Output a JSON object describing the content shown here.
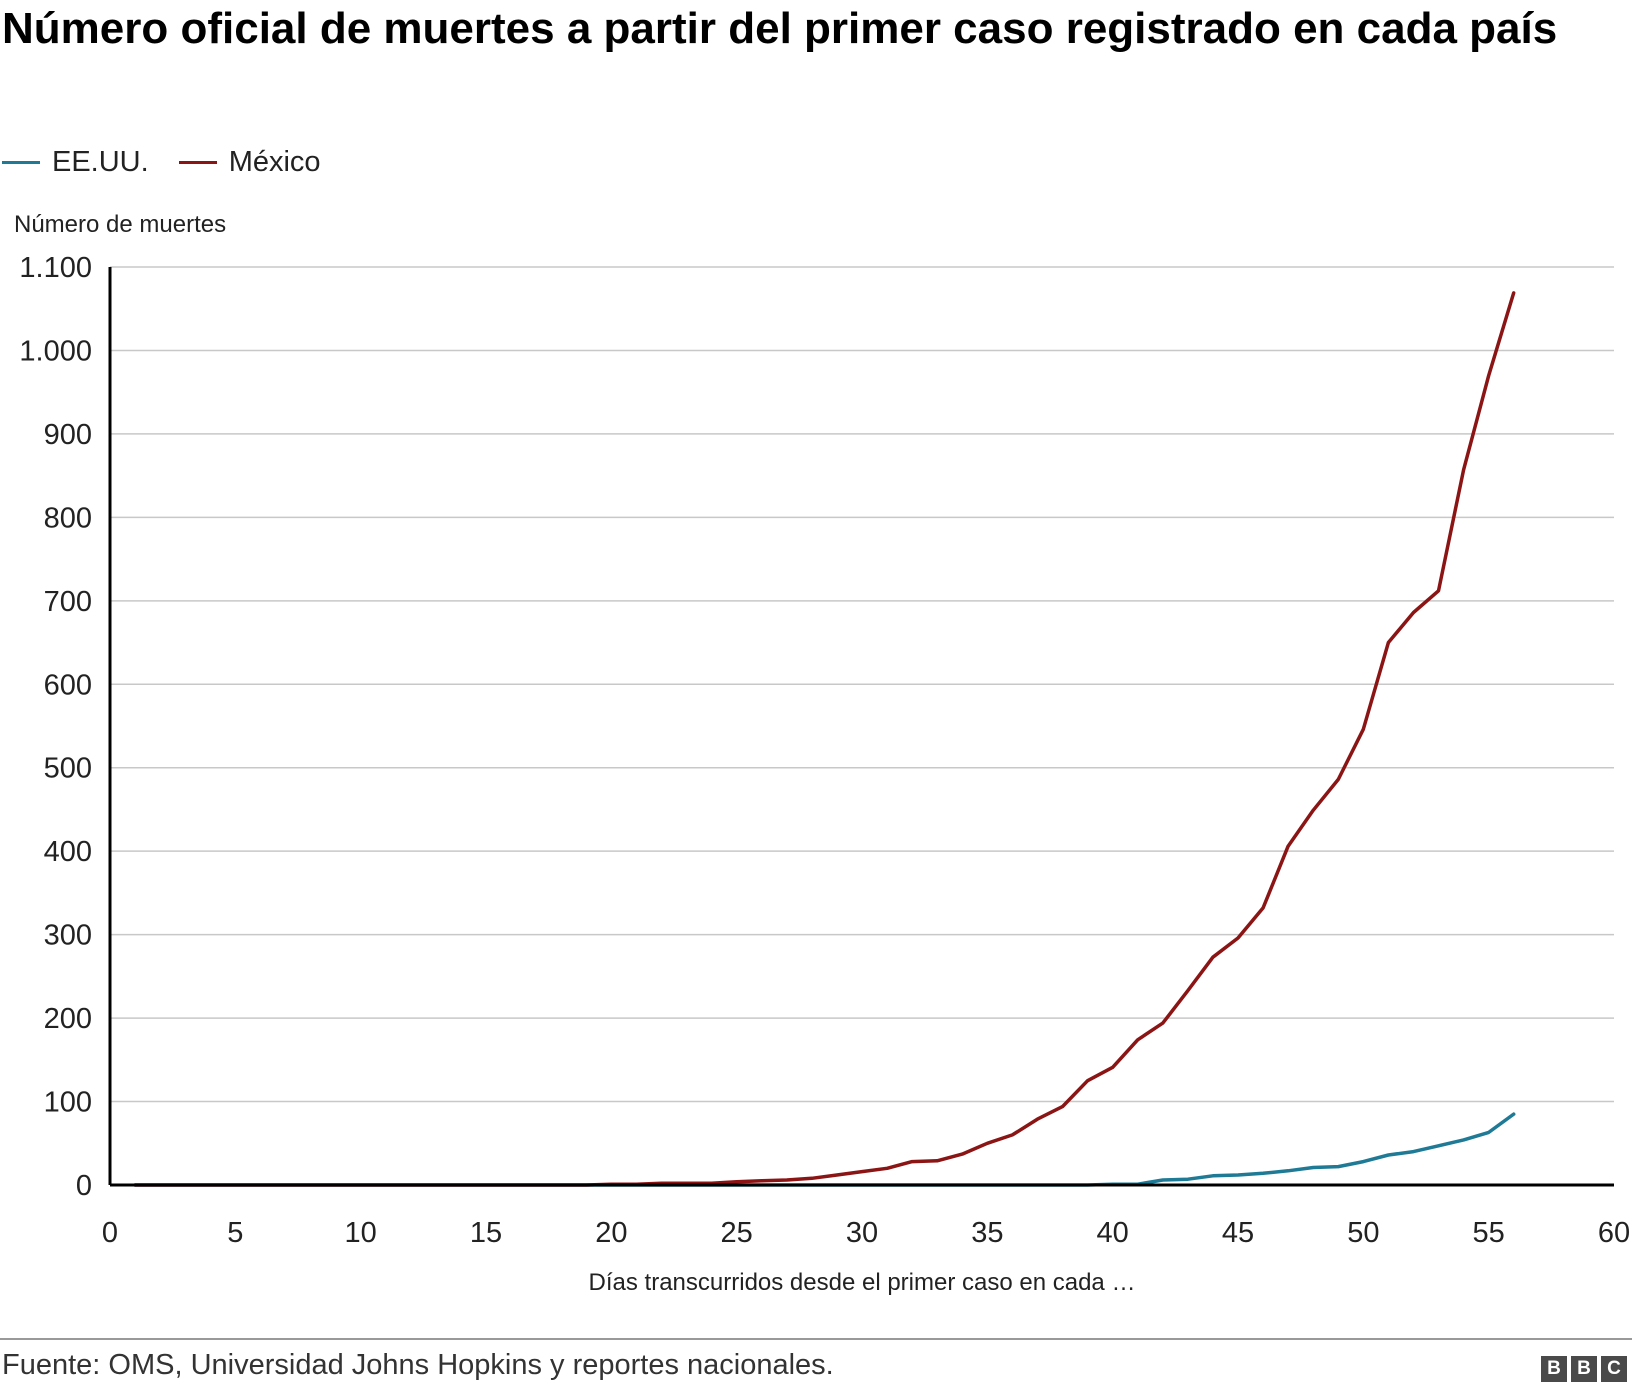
{
  "title": "Número oficial de muertes a partir del primer caso registrado en cada país",
  "legend": [
    {
      "label": "EE.UU.",
      "color": "#1f7a96"
    },
    {
      "label": "México",
      "color": "#8b1414"
    }
  ],
  "footer": {
    "source": "Fuente: OMS, Universidad Johns Hopkins y reportes nacionales.",
    "logo_letters": [
      "B",
      "B",
      "C"
    ]
  },
  "chart_data": {
    "type": "line",
    "title": "Número oficial de muertes a partir del primer caso registrado en cada país",
    "xlabel": "Días transcurridos desde el primer caso en cada …",
    "ylabel": "Número de muertes",
    "xlim": [
      0,
      60
    ],
    "ylim": [
      0,
      1100
    ],
    "x_ticks": [
      0,
      5,
      10,
      15,
      20,
      25,
      30,
      35,
      40,
      45,
      50,
      55,
      60
    ],
    "x_tick_labels": [
      "0",
      "5",
      "10",
      "15",
      "20",
      "25",
      "30",
      "35",
      "40",
      "45",
      "50",
      "55",
      "60"
    ],
    "y_ticks": [
      0,
      100,
      200,
      300,
      400,
      500,
      600,
      700,
      800,
      900,
      1000,
      1100
    ],
    "y_tick_labels": [
      "0",
      "100",
      "200",
      "300",
      "400",
      "500",
      "600",
      "700",
      "800",
      "900",
      "1.000",
      "1.100"
    ],
    "grid": "horizontal",
    "legend_position": "top-left",
    "x": [
      1,
      2,
      3,
      4,
      5,
      6,
      7,
      8,
      9,
      10,
      11,
      12,
      13,
      14,
      15,
      16,
      17,
      18,
      19,
      20,
      21,
      22,
      23,
      24,
      25,
      26,
      27,
      28,
      29,
      30,
      31,
      32,
      33,
      34,
      35,
      36,
      37,
      38,
      39,
      40,
      41,
      42,
      43,
      44,
      45,
      46,
      47,
      48,
      49,
      50,
      51,
      52,
      53,
      54,
      55,
      56
    ],
    "series": [
      {
        "name": "EE.UU.",
        "color": "#1f7a96",
        "values": [
          0,
          0,
          0,
          0,
          0,
          0,
          0,
          0,
          0,
          0,
          0,
          0,
          0,
          0,
          0,
          0,
          0,
          0,
          0,
          0,
          0,
          0,
          0,
          0,
          0,
          0,
          0,
          0,
          0,
          0,
          0,
          0,
          0,
          0,
          0,
          0,
          0,
          0,
          0,
          1,
          1,
          6,
          7,
          11,
          12,
          14,
          17,
          21,
          22,
          28,
          36,
          40,
          47,
          54,
          63,
          85
        ]
      },
      {
        "name": "México",
        "color": "#8b1414",
        "values": [
          0,
          0,
          0,
          0,
          0,
          0,
          0,
          0,
          0,
          0,
          0,
          0,
          0,
          0,
          0,
          0,
          0,
          0,
          0,
          1,
          1,
          2,
          2,
          2,
          4,
          5,
          6,
          8,
          12,
          16,
          20,
          28,
          29,
          37,
          50,
          60,
          79,
          94,
          125,
          141,
          174,
          194,
          233,
          273,
          296,
          332,
          406,
          449,
          486,
          546,
          650,
          686,
          712,
          857,
          970,
          1069
        ]
      }
    ]
  }
}
